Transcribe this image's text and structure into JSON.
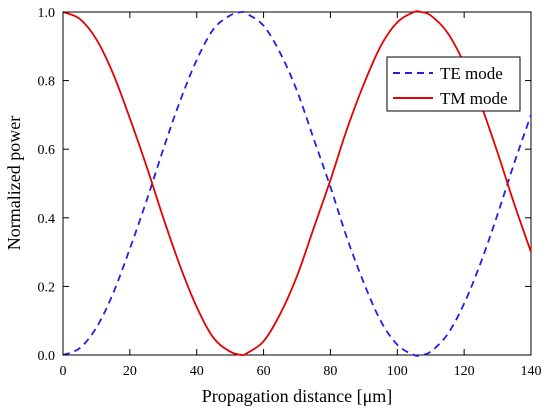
{
  "chart_data": {
    "type": "line",
    "xlabel": "Propagation distance [μm]",
    "ylabel": "Normalized power",
    "xlim": [
      0,
      140
    ],
    "ylim": [
      0,
      1.0
    ],
    "xticks": [
      "0",
      "20",
      "40",
      "60",
      "80",
      "100",
      "120",
      "140"
    ],
    "yticks": [
      "0.0",
      "0.2",
      "0.4",
      "0.6",
      "0.8",
      "1.0"
    ],
    "grid": false,
    "legend_position": "top-right",
    "x": [
      0,
      5,
      10,
      15,
      20,
      25,
      30,
      35,
      40,
      45,
      50,
      53.5,
      55,
      60,
      65,
      70,
      75,
      80,
      85,
      90,
      95,
      100,
      105,
      107,
      110,
      115,
      120,
      125,
      130,
      135,
      140
    ],
    "series": [
      {
        "name": "TE mode",
        "color": "#1f1fe6",
        "style": "dashed",
        "values": [
          0.0,
          0.02,
          0.08,
          0.18,
          0.31,
          0.45,
          0.6,
          0.74,
          0.86,
          0.95,
          0.99,
          1.0,
          0.995,
          0.96,
          0.88,
          0.77,
          0.63,
          0.49,
          0.34,
          0.21,
          0.1,
          0.03,
          0.0,
          0.0,
          0.01,
          0.06,
          0.15,
          0.27,
          0.41,
          0.56,
          0.7
        ]
      },
      {
        "name": "TM mode",
        "color": "#e60000",
        "style": "solid",
        "values": [
          1.0,
          0.98,
          0.92,
          0.82,
          0.69,
          0.55,
          0.4,
          0.26,
          0.14,
          0.05,
          0.01,
          0.0,
          0.005,
          0.04,
          0.12,
          0.23,
          0.37,
          0.51,
          0.66,
          0.79,
          0.9,
          0.97,
          1.0,
          1.0,
          0.99,
          0.94,
          0.85,
          0.73,
          0.59,
          0.44,
          0.3
        ]
      }
    ]
  }
}
